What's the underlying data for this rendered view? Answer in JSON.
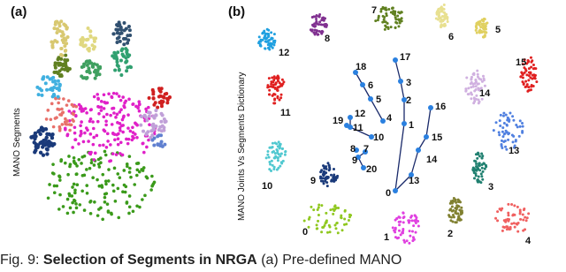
{
  "panel_a": {
    "label": "(a)",
    "axis_title": "MANO Segments"
  },
  "panel_b": {
    "label": "(b)",
    "axis_title": "MANO Joints Vs Segments Dictionary",
    "segment_labels": [
      "0",
      "1",
      "2",
      "3",
      "4",
      "5",
      "6",
      "7",
      "8",
      "9",
      "10",
      "11",
      "12",
      "13",
      "14",
      "15"
    ],
    "joint_labels": [
      "0",
      "1",
      "2",
      "3",
      "4",
      "5",
      "6",
      "7",
      "8",
      "9",
      "10",
      "11",
      "12",
      "13",
      "14",
      "15",
      "16",
      "17",
      "18",
      "19",
      "20"
    ]
  },
  "caption": {
    "prefix": "Fig. 9:",
    "bold": "Selection of Segments in NRGA",
    "rest": "(a) Pre-defined MANO"
  }
}
